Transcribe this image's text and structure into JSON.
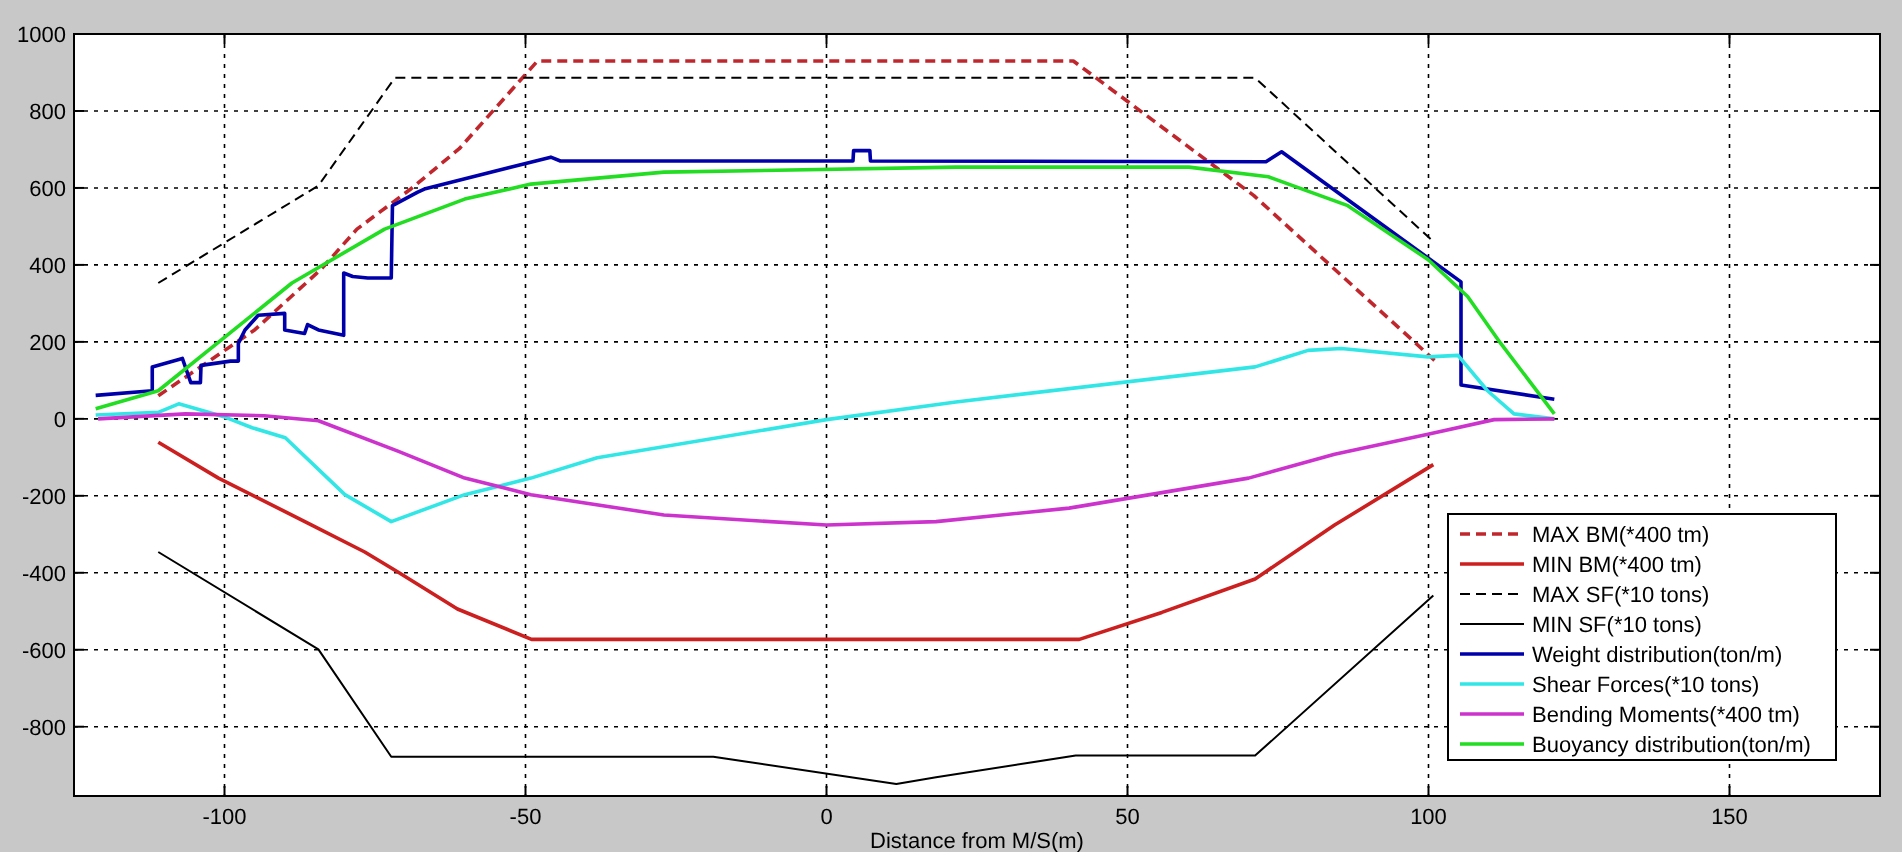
{
  "chart_data": {
    "type": "line",
    "xlabel": "Distance from M/S(m)",
    "xlim": [
      -125,
      175
    ],
    "xticks": [
      -100,
      -50,
      0,
      50,
      100,
      150
    ],
    "ylim": [
      -980,
      1000
    ],
    "yticks": [
      -800,
      -600,
      -400,
      -200,
      0,
      200,
      400,
      600,
      800,
      1000
    ],
    "grid": true,
    "legend": "bottom right",
    "marker": "none",
    "series": [
      {
        "name": "MAX BM(*400 tm)",
        "color": "#c0272d",
        "line_style": "dashed",
        "x": [
          -111,
          -95,
          -84,
          -78,
          -69,
          -61,
          -48,
          41,
          71,
          101
        ],
        "values": [
          60,
          231,
          388,
          493,
          598,
          702,
          930,
          930,
          580,
          152
        ]
      },
      {
        "name": "MIN BM(*400 tm)",
        "color": "#cc1f1f",
        "line_style": "solid",
        "x": [
          -111,
          -101,
          -85.5,
          -76.7,
          -71.2,
          -61.3,
          -49,
          42,
          55.7,
          71.2,
          84.4,
          100.8
        ],
        "values": [
          -61,
          -154,
          -276,
          -346,
          -398,
          -494,
          -573,
          -573,
          -503,
          -416,
          -276,
          -119
        ]
      },
      {
        "name": "MAX SF(*10 tons)",
        "color": "#000000",
        "line_style": "dashed",
        "x": [
          -111,
          -84.4,
          -71.7,
          71.2,
          101
        ],
        "values": [
          353,
          606,
          886,
          886,
          458
        ]
      },
      {
        "name": "MIN SF(*10 tons)",
        "color": "#000000",
        "line_style": "solid",
        "x": [
          -111,
          -84.4,
          -72.3,
          -18.8,
          11.6,
          18.2,
          41.4,
          71.2,
          100.8
        ],
        "values": [
          -346,
          -599,
          -878,
          -878,
          -949,
          -931,
          -875,
          -875,
          -459
        ]
      },
      {
        "name": "Weight distribution(ton/m)",
        "color": "#0000aa",
        "line_style": "solid",
        "x": [
          -121.4,
          -112,
          -112,
          -107,
          -105.6,
          -104,
          -103.9,
          -99,
          -97.7,
          -97.7,
          -96.6,
          -94.4,
          -90,
          -90,
          -86.7,
          -86.2,
          -84.4,
          -80.2,
          -80.2,
          -78.7,
          -76.2,
          -72.3,
          -72.1,
          -67.9,
          -66.8,
          -45.8,
          -44.2,
          4.4,
          4.5,
          7.2,
          7.3,
          72.8,
          73,
          75.6,
          105.4,
          105.4,
          120.9
        ],
        "values": [
          61,
          73,
          135,
          157,
          94,
          94,
          139,
          150,
          150,
          196,
          231,
          269,
          274,
          231,
          222,
          245,
          231,
          217,
          379,
          370,
          366,
          366,
          554,
          589,
          597,
          680,
          670,
          670,
          697,
          697,
          670,
          668,
          668,
          694,
          356,
          88,
          51
        ]
      },
      {
        "name": "Shear Forces(*10 tons)",
        "color": "#33e6e6",
        "line_style": "solid",
        "x": [
          -121.4,
          -111,
          -107.6,
          -99.8,
          -95.4,
          -89.9,
          -80,
          -72.3,
          -60.1,
          -49.1,
          -38.1,
          0,
          21.5,
          71.2,
          80,
          85.5,
          99.9,
          104.9,
          109.8,
          114.2,
          120.9
        ],
        "values": [
          10,
          17,
          39,
          4,
          -23,
          -49,
          -197,
          -267,
          -197,
          -154,
          -101,
          -2,
          44,
          135,
          178,
          183,
          161,
          165,
          73,
          13,
          0
        ]
      },
      {
        "name": "Bending Moments(*400 tm)",
        "color": "#cc33cc",
        "line_style": "solid",
        "x": [
          -121,
          -106.5,
          -93.4,
          -84.4,
          -71.2,
          -60.1,
          -49.1,
          -27,
          0,
          18.2,
          40.3,
          70.1,
          84.4,
          99.9,
          110.9,
          120.9
        ],
        "values": [
          0,
          13,
          8,
          -5,
          -84,
          -154,
          -197,
          -250,
          -276,
          -267,
          -232,
          -154,
          -92,
          -40,
          -2,
          0
        ]
      },
      {
        "name": "Buoyancy distribution(ton/m)",
        "color": "#22dd22",
        "line_style": "solid",
        "x": [
          -121.4,
          -111,
          -99.9,
          -88.8,
          -73.4,
          -60.1,
          -49.1,
          -27,
          21.5,
          60.2,
          73.4,
          86.6,
          99.9,
          106.5,
          112,
          120.9
        ],
        "values": [
          26,
          73,
          213,
          353,
          493,
          571,
          610,
          641,
          654,
          654,
          629,
          554,
          414,
          318,
          196,
          13
        ]
      }
    ]
  }
}
